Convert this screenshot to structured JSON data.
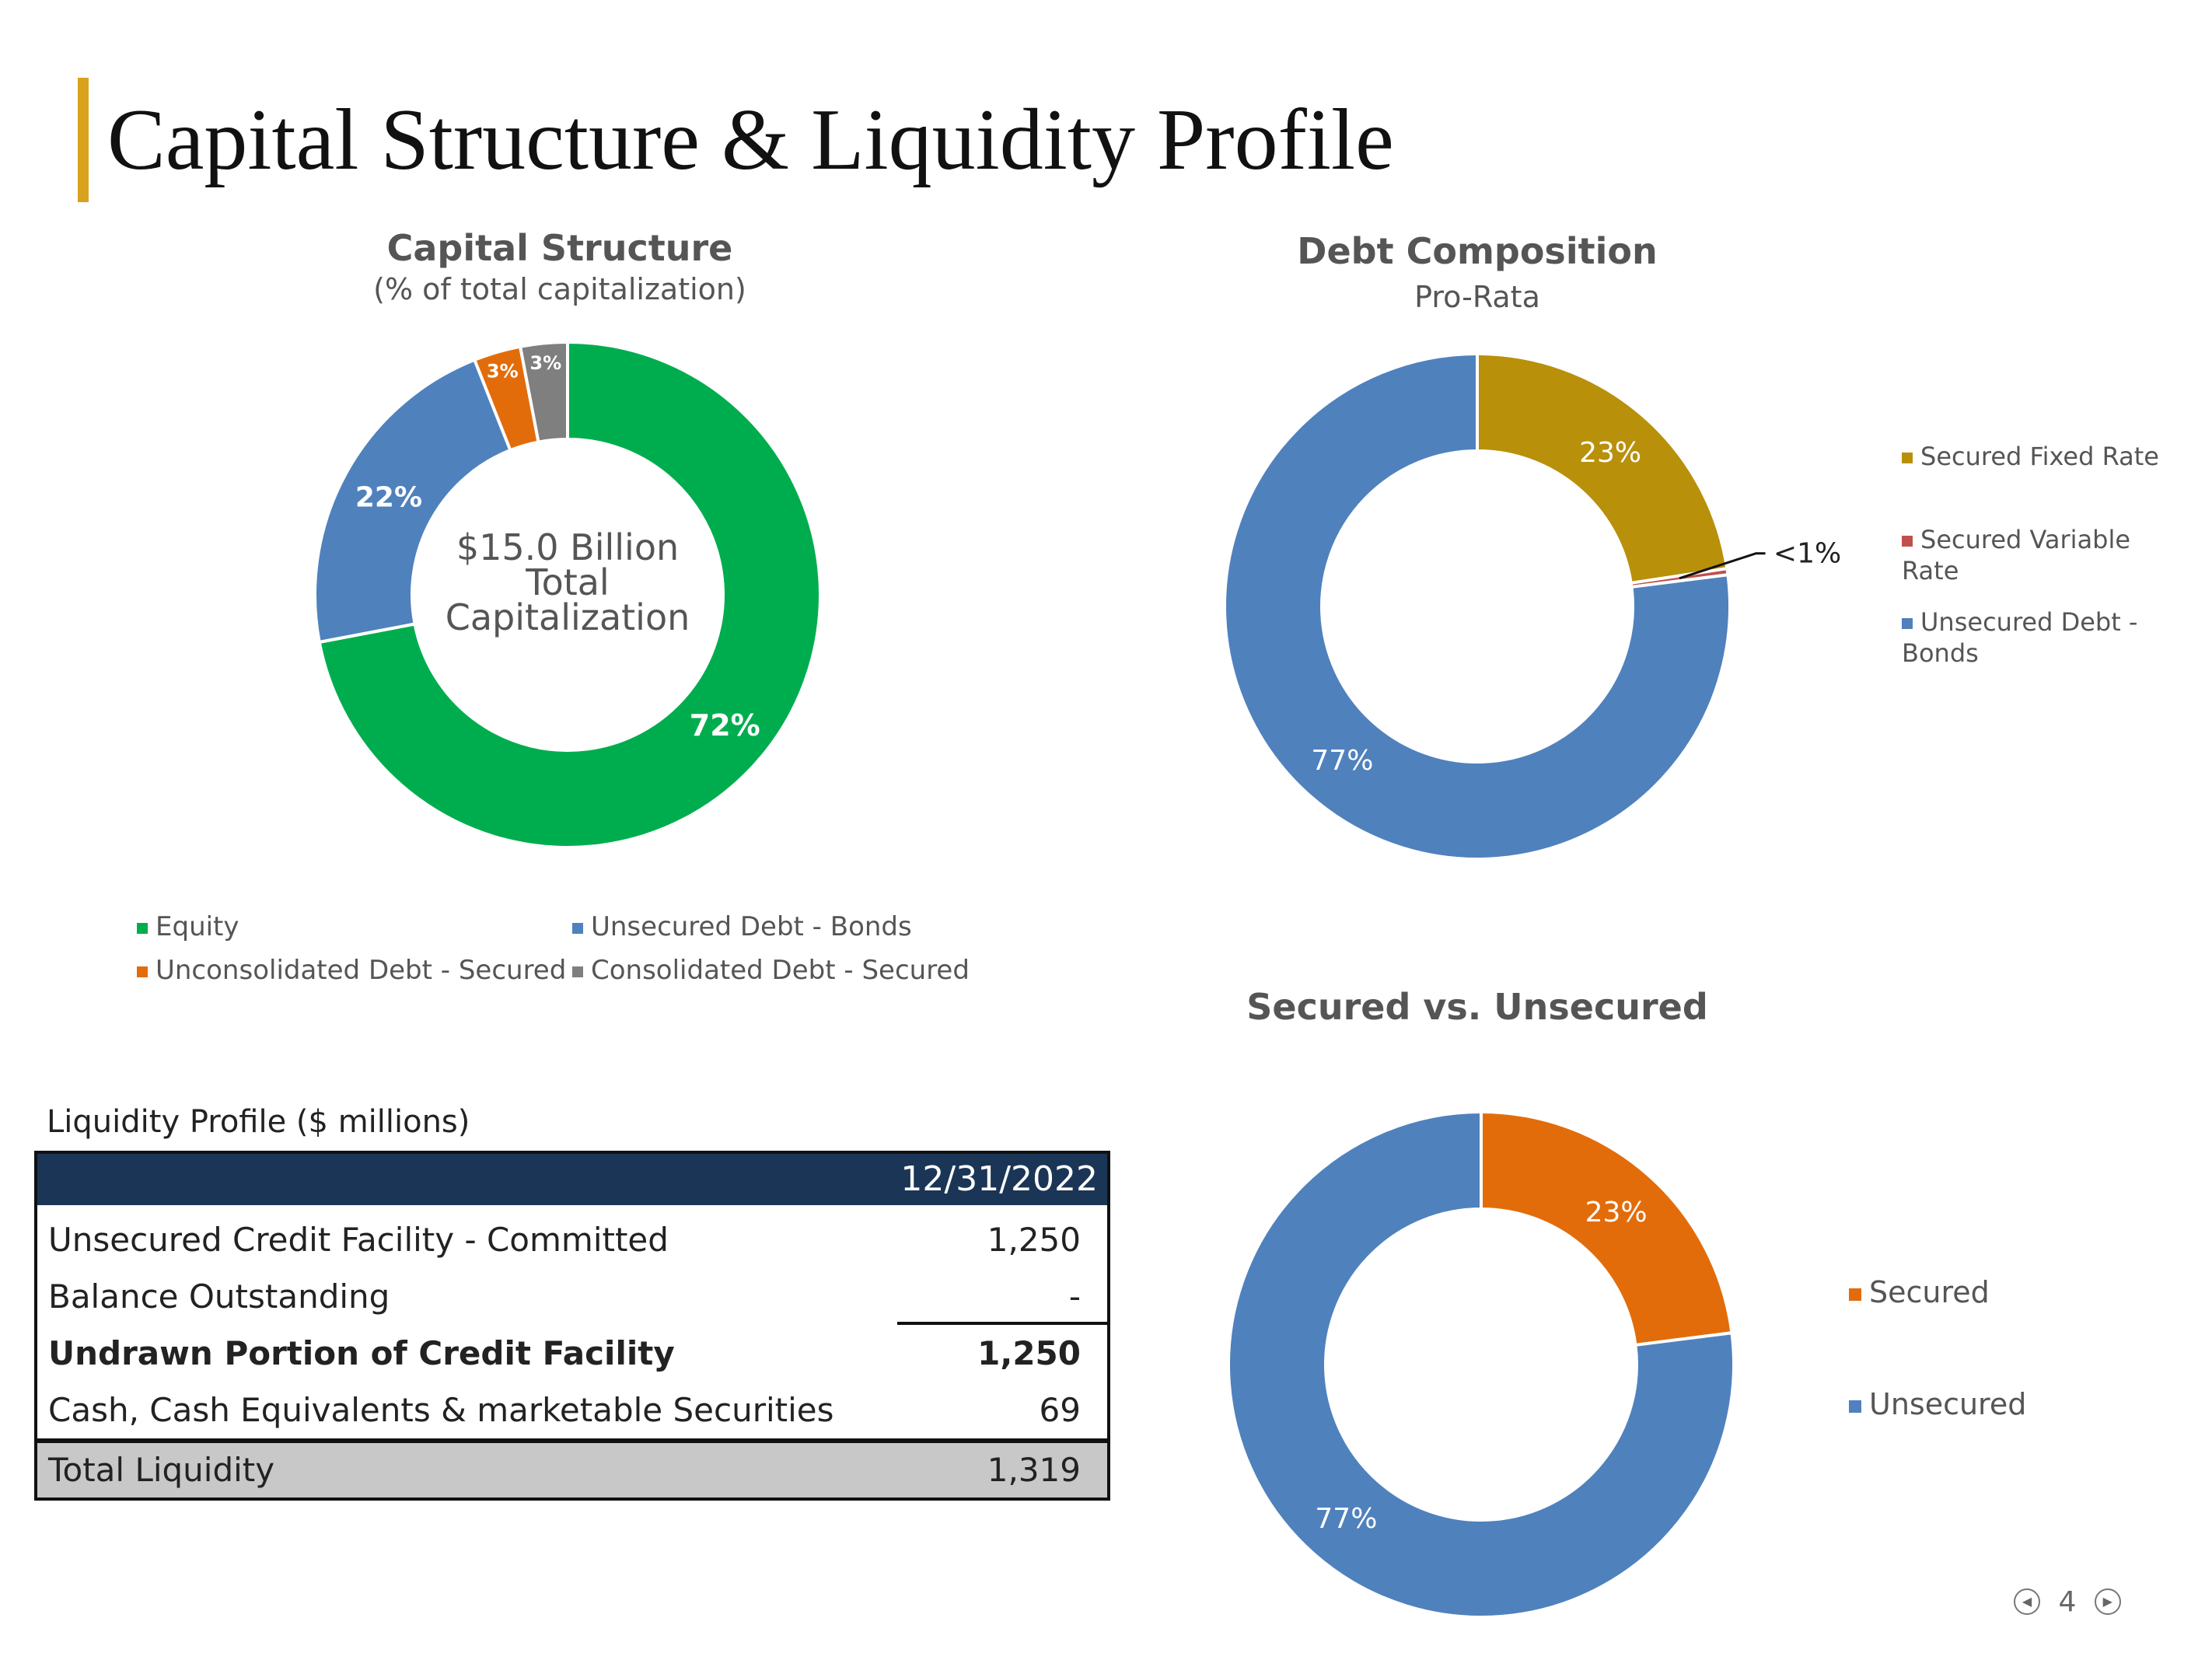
{
  "page": {
    "title": "Capital Structure & Liquidity Profile",
    "page_number": "4",
    "colors": {
      "accent": "#D9A21E"
    }
  },
  "chart_data": [
    {
      "type": "pie",
      "title": "Capital Structure",
      "subtitle": "(% of total capitalization)",
      "center_label": [
        "$15.0 Billion",
        "Total",
        "Capitalization"
      ],
      "legend": "bottom",
      "series": [
        {
          "name": "Equity",
          "value": 72,
          "label": "72%",
          "color": "#00AD4E"
        },
        {
          "name": "Unsecured Debt - Bonds",
          "value": 22,
          "label": "22%",
          "color": "#4F81BD"
        },
        {
          "name": "Unconsolidated Debt - Secured",
          "value": 3,
          "label": "3%",
          "color": "#E36C0A"
        },
        {
          "name": "Consolidated Debt - Secured",
          "value": 3,
          "label": "3%",
          "color": "#7F7F7F"
        }
      ]
    },
    {
      "type": "pie",
      "title": "Debt Composition",
      "subtitle": "Pro-Rata",
      "legend": "right",
      "series": [
        {
          "name": "Secured Fixed Rate",
          "value": 22.6,
          "label": "23%",
          "color": "#B8900A"
        },
        {
          "name": "Secured Variable Rate",
          "value": 0.4,
          "label": "<1%",
          "color": "#C0504D"
        },
        {
          "name": "Unsecured Debt - Bonds",
          "value": 77,
          "label": "77%",
          "color": "#4F81BD"
        }
      ]
    },
    {
      "type": "pie",
      "title": "Secured vs. Unsecured",
      "subtitle": "",
      "legend": "right",
      "series": [
        {
          "name": "Secured",
          "value": 23,
          "label": "23%",
          "color": "#E36C0A"
        },
        {
          "name": "Unsecured",
          "value": 77,
          "label": "77%",
          "color": "#4F81BD"
        }
      ]
    }
  ],
  "liquidity": {
    "caption": "Liquidity Profile ($ millions)",
    "column_header": "12/31/2022",
    "rows": [
      {
        "label": "Unsecured Credit Facility - Committed",
        "value": "1,250"
      },
      {
        "label": "Balance Outstanding",
        "value": "-"
      },
      {
        "label": "Undrawn Portion of Credit Facility",
        "value": "1,250"
      },
      {
        "label": "Cash, Cash Equivalents & marketable Securities",
        "value": "69"
      }
    ],
    "total": {
      "label": "Total Liquidity",
      "value": "1,319"
    }
  }
}
